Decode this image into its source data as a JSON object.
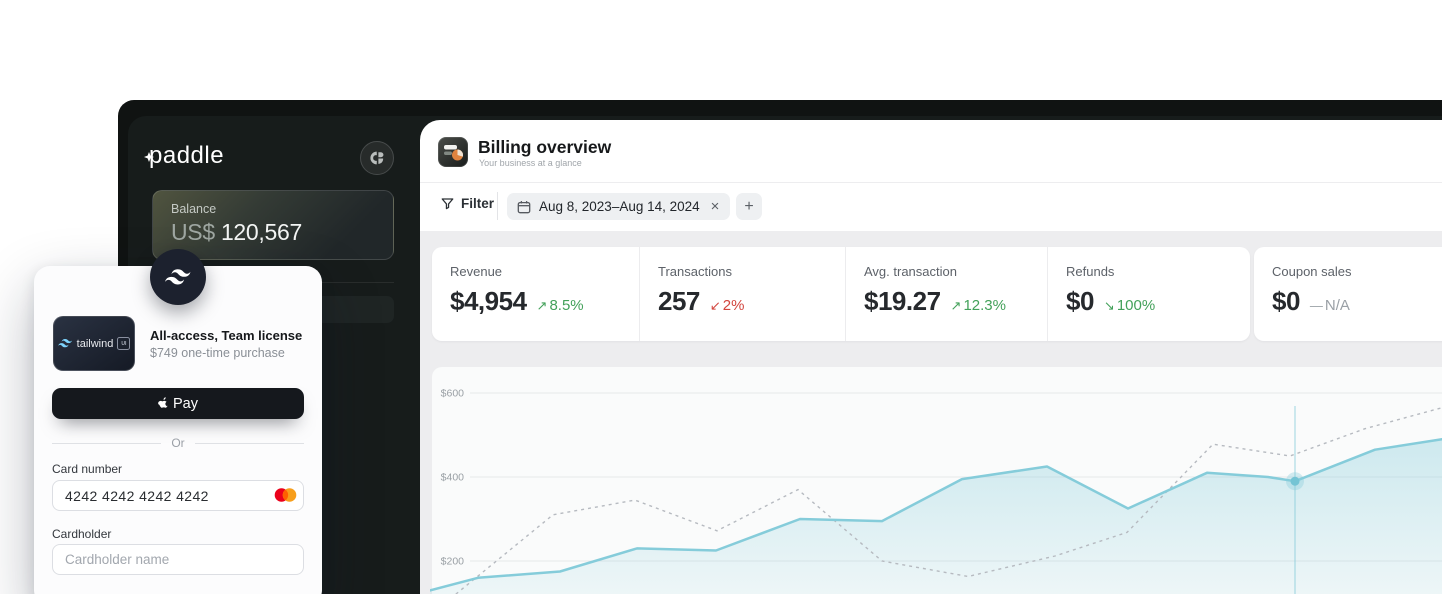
{
  "sidebar": {
    "logo": "paddle",
    "balance_label": "Balance",
    "balance_currency": "US$",
    "balance_value": "120,567"
  },
  "checkout": {
    "brand": "tailwind",
    "brand_ui_box": "UI",
    "product_title": "All-access, Team license",
    "product_price": "$749 one-time purchase",
    "apple_pay_label": "Pay",
    "or_label": "Or",
    "card_number_label": "Card number",
    "card_number_value": "4242 4242 4242 4242",
    "cardholder_label": "Cardholder",
    "cardholder_placeholder": "Cardholder name"
  },
  "header": {
    "title": "Billing overview",
    "subtitle": "Your business at a glance"
  },
  "filter": {
    "label": "Filter",
    "date_range": "Aug 8, 2023–Aug 14, 2024",
    "remove_glyph": "×",
    "add_glyph": "+"
  },
  "icons": {
    "filter": "funnel-icon",
    "date": "calendar-icon",
    "remove": "close-icon",
    "add": "plus-icon",
    "pay": "apple-icon",
    "card_brand": "mastercard-icon",
    "avatar": "monogram-icon",
    "badge": "tailwind-wave-icon",
    "app": "billing-chart-icon"
  },
  "stats": [
    {
      "label": "Revenue",
      "value": "$4,954",
      "arrow": "↗",
      "delta": "8.5%",
      "color": "#43a15a"
    },
    {
      "label": "Transactions",
      "value": "257",
      "arrow": "↙",
      "delta": "2%",
      "color": "#d2453e"
    },
    {
      "label": "Avg. transaction",
      "value": "$19.27",
      "arrow": "↗",
      "delta": "12.3%",
      "color": "#43a15a"
    },
    {
      "label": "Refunds",
      "value": "$0",
      "arrow": "↘",
      "delta": "100%",
      "color": "#43a15a"
    },
    {
      "label": "Coupon sales",
      "value": "$0",
      "arrow": "—",
      "delta": "N/A",
      "color": "#9aa0a6"
    }
  ],
  "chart_data": {
    "type": "area",
    "y_ticks": [
      "$600",
      "$400",
      "$200"
    ],
    "y_gridline_values": [
      600,
      400,
      200
    ],
    "ylim": [
      80,
      650
    ],
    "grid": true,
    "legend": false,
    "series": [
      {
        "name": "current-period",
        "style": "solid",
        "color": "#85ccda",
        "fill": "rgba(133,204,218,0.30)",
        "points": [
          [
            430,
            130
          ],
          [
            478,
            160
          ],
          [
            560,
            175
          ],
          [
            637,
            230
          ],
          [
            716,
            225
          ],
          [
            800,
            300
          ],
          [
            882,
            295
          ],
          [
            962,
            395
          ],
          [
            1047,
            425
          ],
          [
            1128,
            325
          ],
          [
            1207,
            410
          ],
          [
            1268,
            400
          ],
          [
            1295,
            390
          ],
          [
            1375,
            465
          ],
          [
            1442,
            490
          ]
        ]
      },
      {
        "name": "previous-period",
        "style": "dashed",
        "color": "#b6bac0",
        "points": [
          [
            445,
            100
          ],
          [
            553,
            310
          ],
          [
            635,
            345
          ],
          [
            717,
            272
          ],
          [
            798,
            370
          ],
          [
            882,
            200
          ],
          [
            968,
            163
          ],
          [
            1055,
            212
          ],
          [
            1127,
            268
          ],
          [
            1213,
            478
          ],
          [
            1290,
            450
          ],
          [
            1365,
            515
          ],
          [
            1442,
            565
          ]
        ]
      }
    ],
    "indicator": {
      "x": 1295,
      "value": 390
    }
  }
}
